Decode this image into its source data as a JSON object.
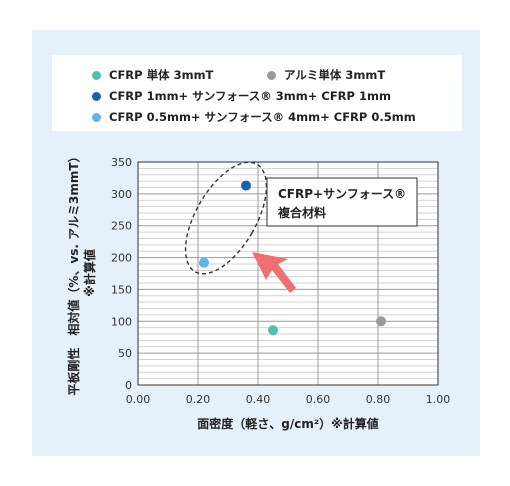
{
  "legend": {
    "items": [
      {
        "label": "CFRP 単体 3mmT",
        "color": "#4fc0a8"
      },
      {
        "label": "アルミ単体 3mmT",
        "color": "#9a9a9a"
      },
      {
        "label": "CFRP 1mm+ サンフォース® 3mm+ CFRP 1mm",
        "color": "#1a5fb0"
      },
      {
        "label": "CFRP 0.5mm+ サンフォース® 4mm+ CFRP 0.5mm",
        "color": "#5fb3e6"
      }
    ]
  },
  "annotation": {
    "line1": "CFRP+サンフォース®",
    "line2": "複合材料"
  },
  "chart_data": {
    "type": "scatter",
    "xlabel": "面密度（軽さ、g/cm²）※計算値",
    "ylabel_line1": "平板剛性　相対値（%、vs. アルミ3mmT）",
    "ylabel_line2": "※計算値",
    "xlim": [
      0,
      1.0
    ],
    "ylim": [
      0,
      350
    ],
    "x_ticks": [
      "0.00",
      "0.20",
      "0.40",
      "0.60",
      "0.80",
      "1.00"
    ],
    "y_ticks": [
      "0",
      "50",
      "100",
      "150",
      "200",
      "250",
      "300",
      "350"
    ],
    "grid": true,
    "series": [
      {
        "name": "CFRP 単体 3mmT",
        "color": "#4fc0a8",
        "points": [
          {
            "x": 0.45,
            "y": 86
          }
        ]
      },
      {
        "name": "アルミ単体 3mmT",
        "color": "#9a9a9a",
        "points": [
          {
            "x": 0.81,
            "y": 100
          }
        ]
      },
      {
        "name": "CFRP 1mm+ サンフォース® 3mm+ CFRP 1mm",
        "color": "#1a5fb0",
        "points": [
          {
            "x": 0.36,
            "y": 313
          }
        ]
      },
      {
        "name": "CFRP 0.5mm+ サンフォース® 4mm+ CFRP 0.5mm",
        "color": "#5fb3e6",
        "points": [
          {
            "x": 0.22,
            "y": 192
          }
        ]
      }
    ]
  }
}
